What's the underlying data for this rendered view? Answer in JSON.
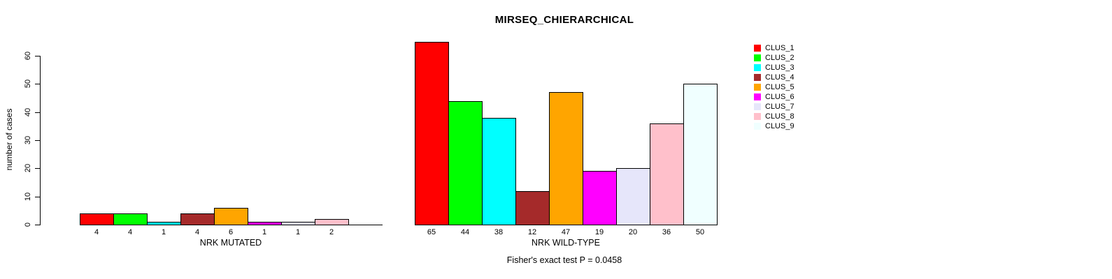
{
  "chart_data": {
    "type": "bar",
    "title": "MIRSEQ_CHIERARCHICAL",
    "ylabel": "number of cases",
    "ylim": [
      0,
      65
    ],
    "yticks": [
      0,
      10,
      20,
      30,
      40,
      50,
      60
    ],
    "grid": false,
    "legend_position": "right",
    "clusters": [
      {
        "label": "CLUS_1",
        "color": "#FF0000"
      },
      {
        "label": "CLUS_2",
        "color": "#00FF00"
      },
      {
        "label": "CLUS_3",
        "color": "#00FFFF"
      },
      {
        "label": "CLUS_4",
        "color": "#A52A2A"
      },
      {
        "label": "CLUS_5",
        "color": "#FFA500"
      },
      {
        "label": "CLUS_6",
        "color": "#FF00FF"
      },
      {
        "label": "CLUS_7",
        "color": "#E6E6FA"
      },
      {
        "label": "CLUS_8",
        "color": "#FFC0CB"
      },
      {
        "label": "CLUS_9",
        "color": "#F0FFFF"
      }
    ],
    "groups": [
      {
        "xlabel": "NRK MUTATED",
        "values": [
          4,
          4,
          1,
          4,
          6,
          1,
          1,
          2,
          0
        ]
      },
      {
        "xlabel": "NRK WILD-TYPE",
        "values": [
          65,
          44,
          38,
          12,
          47,
          19,
          20,
          36,
          50
        ]
      }
    ],
    "annotation": "Fisher's exact test P = 0.0458"
  }
}
